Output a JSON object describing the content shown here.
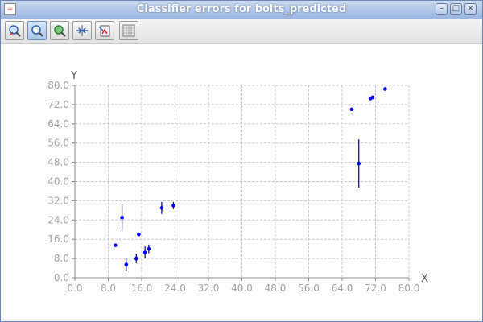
{
  "window": {
    "title": "Classifier errors for bolts_predicted",
    "app_icon": "java-icon",
    "min_label": "–",
    "max_label": "□",
    "close_label": "×"
  },
  "toolbar": {
    "tools": [
      {
        "name": "zoom-reset-icon"
      },
      {
        "name": "zoom-icon",
        "active": true
      },
      {
        "name": "pan-icon"
      },
      {
        "name": "fit-icon"
      },
      {
        "name": "save-icon"
      },
      {
        "name": "grid-icon"
      }
    ]
  },
  "chart_data": {
    "type": "scatter",
    "xlabel": "X",
    "ylabel": "Y",
    "xlim": [
      0,
      80
    ],
    "ylim": [
      0,
      80
    ],
    "xticks": [
      "0.0",
      "8.0",
      "16.0",
      "24.0",
      "32.0",
      "40.0",
      "48.0",
      "56.0",
      "64.0",
      "72.0",
      "80.0"
    ],
    "yticks": [
      "0.0",
      "8.0",
      "16.0",
      "24.0",
      "32.0",
      "40.0",
      "48.0",
      "56.0",
      "64.0",
      "72.0",
      "80.0"
    ],
    "grid": true,
    "point_color": "#0000ff",
    "error_color": "#00007f",
    "points": [
      {
        "x": 9.7,
        "y": 13.5,
        "err": 0
      },
      {
        "x": 11.3,
        "y": 25.0,
        "err": 5.5
      },
      {
        "x": 12.3,
        "y": 5.5,
        "err": 2.8
      },
      {
        "x": 14.7,
        "y": 8.0,
        "err": 2.0
      },
      {
        "x": 15.3,
        "y": 18.0,
        "err": 0
      },
      {
        "x": 16.8,
        "y": 10.5,
        "err": 2.5
      },
      {
        "x": 17.7,
        "y": 12.0,
        "err": 1.8
      },
      {
        "x": 20.8,
        "y": 29.0,
        "err": 2.5
      },
      {
        "x": 23.6,
        "y": 30.0,
        "err": 1.5
      },
      {
        "x": 66.3,
        "y": 70.0,
        "err": 0
      },
      {
        "x": 68.0,
        "y": 47.5,
        "err": 10.0
      },
      {
        "x": 70.8,
        "y": 74.5,
        "err": 0
      },
      {
        "x": 71.3,
        "y": 75.0,
        "err": 0
      },
      {
        "x": 74.3,
        "y": 78.5,
        "err": 0
      }
    ]
  }
}
